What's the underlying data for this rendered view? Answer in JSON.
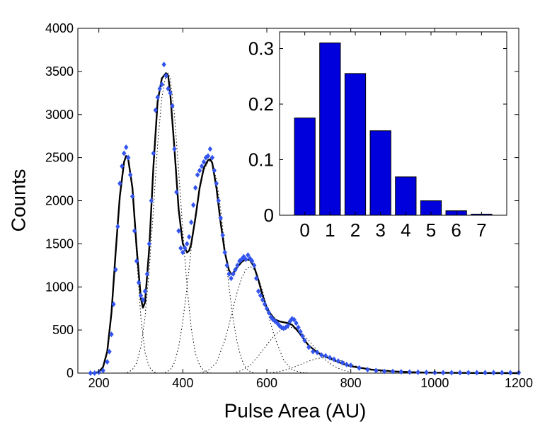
{
  "chart_data": [
    {
      "type": "scatter",
      "xlabel": "Pulse Area (AU)",
      "ylabel": "Counts",
      "xlim": [
        150,
        1200
      ],
      "ylim": [
        0,
        4000
      ],
      "xticks": [
        200,
        400,
        600,
        800,
        1000,
        1200
      ],
      "yticks": [
        0,
        500,
        1000,
        1500,
        2000,
        2500,
        3000,
        3500,
        4000
      ],
      "grid": false,
      "colors": {
        "points": "#3355ee",
        "fit": "#000000",
        "components": "#000000"
      },
      "series": [
        {
          "style": "diamond-markers",
          "x": [
            180,
            190,
            200,
            210,
            220,
            225,
            230,
            235,
            240,
            245,
            250,
            255,
            260,
            265,
            270,
            275,
            280,
            285,
            290,
            295,
            300,
            305,
            310,
            315,
            320,
            325,
            330,
            335,
            340,
            345,
            350,
            355,
            360,
            365,
            370,
            375,
            380,
            385,
            390,
            395,
            400,
            405,
            410,
            415,
            420,
            425,
            430,
            435,
            440,
            445,
            450,
            455,
            460,
            465,
            470,
            475,
            480,
            485,
            490,
            495,
            500,
            505,
            510,
            515,
            520,
            525,
            530,
            535,
            540,
            545,
            550,
            555,
            560,
            565,
            570,
            575,
            580,
            585,
            590,
            595,
            600,
            605,
            610,
            615,
            620,
            625,
            630,
            635,
            640,
            645,
            650,
            655,
            660,
            665,
            670,
            675,
            680,
            685,
            690,
            700,
            710,
            720,
            730,
            740,
            750,
            760,
            770,
            780,
            790,
            800,
            820,
            840,
            860,
            880,
            900,
            920,
            940,
            960,
            980,
            1000,
            1020,
            1040,
            1060,
            1080,
            1100,
            1120,
            1140,
            1160,
            1180,
            1200
          ],
          "y": [
            0,
            0,
            10,
            30,
            130,
            250,
            450,
            800,
            1200,
            1700,
            2200,
            2400,
            2550,
            2620,
            2500,
            2300,
            2050,
            1650,
            1300,
            1050,
            900,
            850,
            950,
            1150,
            1500,
            2000,
            2550,
            3050,
            3200,
            3300,
            3350,
            3580,
            3450,
            3300,
            3250,
            3100,
            2600,
            2100,
            1650,
            1450,
            1400,
            1450,
            1500,
            1580,
            1750,
            1950,
            2150,
            2300,
            2350,
            2400,
            2450,
            2500,
            2520,
            2600,
            2500,
            2350,
            2200,
            2000,
            1800,
            1600,
            1400,
            1250,
            1150,
            1100,
            1150,
            1200,
            1250,
            1300,
            1320,
            1350,
            1320,
            1370,
            1330,
            1300,
            1250,
            1100,
            950,
            900,
            850,
            800,
            750,
            700,
            650,
            620,
            600,
            580,
            550,
            530,
            520,
            530,
            550,
            600,
            630,
            620,
            580,
            530,
            480,
            430,
            380,
            300,
            250,
            240,
            210,
            200,
            180,
            160,
            140,
            120,
            100,
            90,
            60,
            40,
            30,
            20,
            20,
            15,
            12,
            10,
            8,
            5,
            5,
            5,
            5,
            5,
            5,
            5,
            5,
            5,
            5,
            5
          ]
        },
        {
          "style": "solid-line",
          "x": [
            180,
            190,
            200,
            210,
            220,
            230,
            240,
            250,
            260,
            265,
            270,
            280,
            290,
            300,
            305,
            310,
            320,
            330,
            340,
            350,
            360,
            365,
            370,
            380,
            390,
            400,
            410,
            415,
            420,
            430,
            440,
            450,
            460,
            465,
            470,
            480,
            490,
            500,
            510,
            515,
            520,
            530,
            540,
            550,
            560,
            570,
            580,
            590,
            600,
            610,
            620,
            630,
            640,
            650,
            660,
            670,
            680,
            690,
            700,
            720,
            740,
            760,
            780,
            800,
            850,
            900,
            950,
            1000,
            1100,
            1200
          ],
          "y": [
            0,
            2,
            15,
            70,
            250,
            700,
            1400,
            2050,
            2450,
            2520,
            2480,
            2150,
            1450,
            870,
            760,
            820,
            1450,
            2400,
            3150,
            3420,
            3480,
            3450,
            3250,
            2600,
            1900,
            1500,
            1400,
            1420,
            1500,
            1800,
            2150,
            2380,
            2470,
            2480,
            2440,
            2150,
            1750,
            1400,
            1190,
            1150,
            1160,
            1230,
            1290,
            1320,
            1310,
            1230,
            1080,
            900,
            760,
            680,
            620,
            600,
            590,
            580,
            560,
            510,
            450,
            380,
            320,
            240,
            190,
            150,
            110,
            80,
            40,
            20,
            10,
            5,
            2,
            0
          ]
        },
        {
          "style": "dotted-component",
          "x": [
            200,
            210,
            220,
            230,
            240,
            250,
            260,
            265,
            270,
            280,
            290,
            300,
            310,
            320,
            330,
            340
          ],
          "y": [
            15,
            70,
            250,
            700,
            1400,
            2050,
            2450,
            2520,
            2480,
            2100,
            1350,
            650,
            240,
            70,
            15,
            0
          ]
        },
        {
          "style": "dotted-component",
          "x": [
            260,
            270,
            280,
            290,
            300,
            310,
            320,
            330,
            340,
            350,
            360,
            365,
            370,
            380,
            390,
            400,
            410,
            420,
            430,
            440,
            450,
            460,
            470
          ],
          "y": [
            0,
            10,
            40,
            120,
            300,
            650,
            1200,
            1900,
            2650,
            3200,
            3460,
            3480,
            3420,
            3000,
            2350,
            1650,
            1000,
            520,
            230,
            90,
            30,
            8,
            0
          ]
        },
        {
          "style": "dotted-component",
          "x": [
            350,
            360,
            370,
            380,
            390,
            400,
            410,
            420,
            430,
            440,
            450,
            460,
            465,
            470,
            480,
            490,
            500,
            510,
            520,
            530,
            540,
            550,
            560,
            570
          ],
          "y": [
            0,
            10,
            40,
            120,
            300,
            600,
            1000,
            1450,
            1850,
            2150,
            2350,
            2450,
            2460,
            2430,
            2250,
            1900,
            1450,
            1000,
            620,
            340,
            160,
            60,
            20,
            0
          ]
        },
        {
          "style": "dotted-component",
          "x": [
            440,
            460,
            480,
            500,
            510,
            520,
            530,
            540,
            550,
            560,
            570,
            580,
            590,
            600,
            610,
            620,
            640,
            660,
            680,
            700
          ],
          "y": [
            0,
            30,
            120,
            380,
            560,
            760,
            950,
            1100,
            1200,
            1240,
            1200,
            1100,
            950,
            760,
            560,
            400,
            150,
            40,
            10,
            0
          ]
        },
        {
          "style": "dotted-component",
          "x": [
            520,
            540,
            560,
            580,
            600,
            620,
            640,
            660,
            680,
            700,
            720,
            740,
            760,
            780,
            800
          ],
          "y": [
            0,
            30,
            90,
            200,
            330,
            450,
            520,
            530,
            480,
            380,
            260,
            150,
            80,
            35,
            10
          ]
        },
        {
          "style": "dotted-component",
          "x": [
            600,
            620,
            640,
            660,
            680,
            700,
            720,
            740,
            760,
            780,
            800,
            840,
            880
          ],
          "y": [
            0,
            10,
            30,
            60,
            100,
            140,
            170,
            180,
            170,
            140,
            100,
            40,
            10
          ]
        }
      ]
    },
    {
      "type": "bar",
      "categories": [
        "0",
        "1",
        "2",
        "3",
        "4",
        "5",
        "6",
        "7"
      ],
      "values": [
        0.175,
        0.31,
        0.255,
        0.152,
        0.069,
        0.026,
        0.008,
        0.002
      ],
      "ylim": [
        0,
        0.33
      ],
      "yticks": [
        0,
        0.1,
        0.2,
        0.3
      ],
      "ytick_labels": [
        "0",
        "0.1",
        "0.2",
        "0.3"
      ],
      "grid": false,
      "colors": {
        "bar": "#0000dd",
        "edge": "#000000"
      }
    }
  ]
}
